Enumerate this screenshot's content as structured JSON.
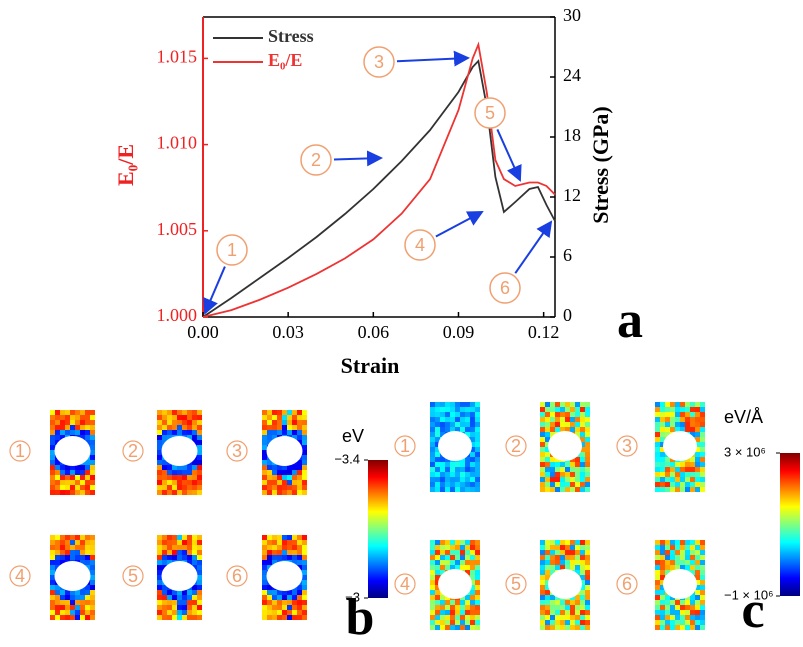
{
  "chart_data": {
    "type": "line",
    "x_label": "Strain",
    "y_label": "E₀/E",
    "y2_label": "Stress (GPa)",
    "x": [
      0,
      0.01,
      0.02,
      0.03,
      0.04,
      0.05,
      0.06,
      0.07,
      0.08,
      0.09,
      0.095,
      0.097,
      0.1,
      0.103,
      0.106,
      0.11,
      0.115,
      0.118,
      0.121,
      0.124
    ],
    "series": [
      {
        "name": "Stress",
        "color": "#333333",
        "axis": "y2",
        "values": [
          0,
          1.9,
          3.9,
          5.9,
          8.0,
          10.3,
          12.8,
          15.6,
          18.7,
          22.5,
          25.0,
          25.6,
          21,
          14,
          10.5,
          11.5,
          12.8,
          13.0,
          11.2,
          9.6
        ]
      },
      {
        "name": "E₀/E",
        "color": "#ee3333",
        "axis": "y",
        "values": [
          1.0,
          1.0004,
          1.001,
          1.0017,
          1.0025,
          1.0034,
          1.0045,
          1.006,
          1.008,
          1.012,
          1.015,
          1.0158,
          1.013,
          1.0091,
          1.008,
          1.0076,
          1.0078,
          1.0078,
          1.0076,
          1.0071
        ]
      }
    ],
    "xlim": [
      0,
      0.124
    ],
    "xticks": [
      {
        "value": 0,
        "label": "0.00"
      },
      0.03,
      0.06,
      0.09,
      {
        "value": 0.12,
        "label": "0.12"
      }
    ],
    "ylim": [
      1.0,
      1.0174
    ],
    "yticks": [
      {
        "value": 1.0,
        "label": "1.000"
      },
      1.005,
      {
        "value": 1.01,
        "label": "1.010"
      },
      1.015
    ],
    "y2lim": [
      0,
      30
    ],
    "y2ticks": [
      0,
      6,
      12,
      18,
      24,
      30
    ],
    "y_color": "#ee2222",
    "legend": "upper left",
    "annotations": [
      "1",
      "2",
      "3",
      "4",
      "5",
      "6"
    ],
    "panel_label": "a"
  },
  "maps": [
    {
      "panel_label": "b",
      "unit": "eV",
      "labels": [
        "1",
        "2",
        "3",
        "4",
        "5",
        "6"
      ],
      "colorbar_ticks": [
        {
          "value": -3.4,
          "label": "−3.4"
        },
        {
          "value": -3,
          "label": "−3"
        }
      ]
    },
    {
      "panel_label": "c",
      "unit": "eV/Å",
      "labels": [
        "1",
        "2",
        "3",
        "4",
        "5",
        "6"
      ],
      "colorbar_ticks": [
        {
          "value": 3000000,
          "label": "3 × 10⁶"
        },
        {
          "value": -1000000,
          "label": "−1 × 10⁶"
        }
      ]
    }
  ]
}
